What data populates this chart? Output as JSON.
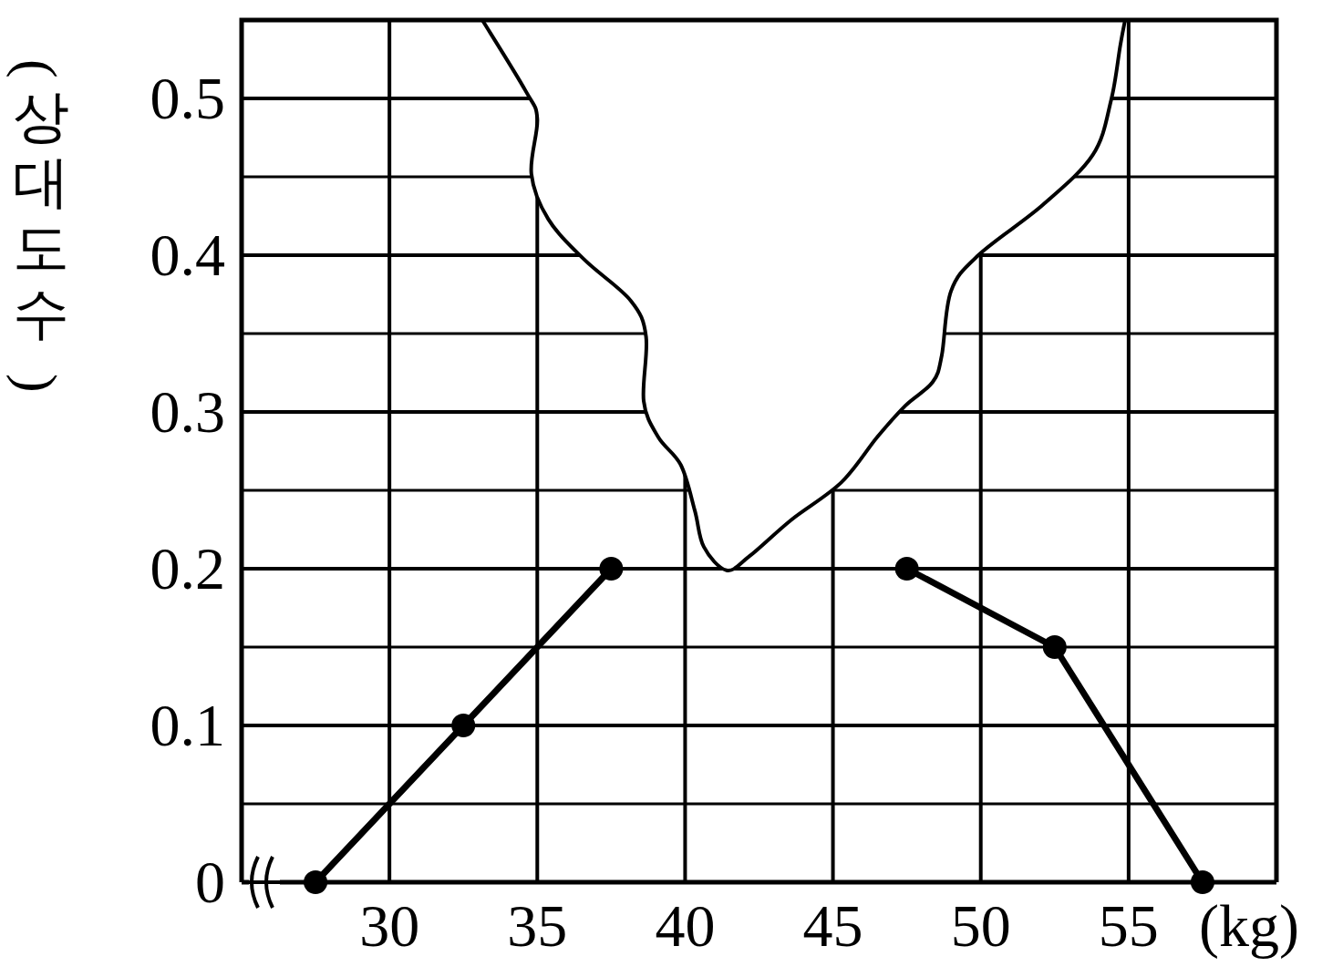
{
  "chart_data": {
    "type": "line",
    "xlabel": "(kg)",
    "ylabel": "(상대도수)",
    "series": [
      {
        "color": "#000000",
        "x": [
          27.5,
          32.5,
          37.5
        ],
        "values": [
          0,
          0.1,
          0.2
        ]
      },
      {
        "color": "#000000",
        "x": [
          47.5,
          52.5,
          57.5
        ],
        "values": [
          0.2,
          0.15,
          0
        ]
      }
    ],
    "xlim": [
      25,
      60
    ],
    "ylim": [
      0,
      0.55
    ],
    "xticks": [
      30,
      35,
      40,
      45,
      50,
      55
    ],
    "yticks": [
      {
        "value": 0,
        "label": "0"
      },
      {
        "value": 0.05,
        "label": null
      },
      {
        "value": 0.1,
        "label": "0.1"
      },
      {
        "value": 0.15,
        "label": null
      },
      {
        "value": 0.2,
        "label": "0.2"
      },
      {
        "value": 0.25,
        "label": null
      },
      {
        "value": 0.3,
        "label": "0.3"
      },
      {
        "value": 0.35,
        "label": null
      },
      {
        "value": 0.4,
        "label": "0.4"
      },
      {
        "value": 0.45,
        "label": null
      },
      {
        "value": 0.5,
        "label": "0.5"
      }
    ],
    "grid": true,
    "marker": "circle",
    "line_style": "solid"
  }
}
